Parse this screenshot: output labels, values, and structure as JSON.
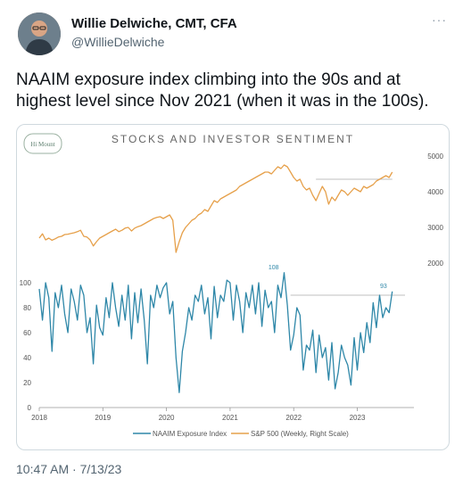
{
  "tweet": {
    "author_name": "Willie Delwiche, CMT, CFA",
    "author_handle": "@WillieDelwiche",
    "more_icon": "more-icon",
    "text": "NAAIM exposure index climbing into the 90s and at highest level since Nov 2021 (when it was in the 100s).",
    "timestamp": "10:47 AM · 7/13/23"
  },
  "logo_text": "Hi Mount",
  "chart_data": {
    "type": "line",
    "title": "STOCKS AND INVESTOR SENTIMENT",
    "x_ticks": [
      "2018",
      "2019",
      "2020",
      "2021",
      "2022",
      "2023"
    ],
    "left_axis_ticks": [
      "0",
      "20",
      "40",
      "60",
      "80",
      "100"
    ],
    "right_axis_ticks": [
      "2000",
      "3000",
      "4000",
      "5000"
    ],
    "left_ylim": [
      0,
      100
    ],
    "right_ylim": [
      2000,
      5000
    ],
    "colors": {
      "naaim": "#2e87a8",
      "sp500": "#e6a04a",
      "refline": "#bfbfbf"
    },
    "annotations": [
      {
        "label": "108",
        "series": "NAAIM Exposure Index",
        "x": 2021.85,
        "value": 108
      },
      {
        "label": "93",
        "series": "NAAIM Exposure Index",
        "x": 2023.55,
        "value": 93
      }
    ],
    "series": [
      {
        "name": "NAAIM Exposure Index",
        "axis": "left",
        "x": [
          2018.0,
          2018.05,
          2018.1,
          2018.15,
          2018.2,
          2018.25,
          2018.3,
          2018.35,
          2018.4,
          2018.45,
          2018.5,
          2018.55,
          2018.6,
          2018.65,
          2018.7,
          2018.75,
          2018.8,
          2018.85,
          2018.9,
          2018.95,
          2019.0,
          2019.05,
          2019.1,
          2019.15,
          2019.2,
          2019.25,
          2019.3,
          2019.35,
          2019.4,
          2019.45,
          2019.5,
          2019.55,
          2019.6,
          2019.65,
          2019.7,
          2019.75,
          2019.8,
          2019.85,
          2019.9,
          2019.95,
          2020.0,
          2020.05,
          2020.1,
          2020.15,
          2020.2,
          2020.25,
          2020.3,
          2020.35,
          2020.4,
          2020.45,
          2020.5,
          2020.55,
          2020.6,
          2020.65,
          2020.7,
          2020.75,
          2020.8,
          2020.85,
          2020.9,
          2020.95,
          2021.0,
          2021.05,
          2021.1,
          2021.15,
          2021.2,
          2021.25,
          2021.3,
          2021.35,
          2021.4,
          2021.45,
          2021.5,
          2021.55,
          2021.6,
          2021.65,
          2021.7,
          2021.75,
          2021.8,
          2021.85,
          2021.9,
          2021.95,
          2022.0,
          2022.05,
          2022.1,
          2022.15,
          2022.2,
          2022.25,
          2022.3,
          2022.35,
          2022.4,
          2022.45,
          2022.5,
          2022.55,
          2022.6,
          2022.65,
          2022.7,
          2022.75,
          2022.8,
          2022.85,
          2022.9,
          2022.95,
          2023.0,
          2023.05,
          2023.1,
          2023.15,
          2023.2,
          2023.25,
          2023.3,
          2023.35,
          2023.4,
          2023.45,
          2023.5,
          2023.55
        ],
        "values": [
          95,
          70,
          100,
          88,
          45,
          92,
          80,
          98,
          75,
          60,
          95,
          85,
          70,
          98,
          90,
          60,
          72,
          35,
          82,
          64,
          58,
          88,
          72,
          100,
          80,
          65,
          90,
          70,
          98,
          55,
          92,
          68,
          95,
          70,
          35,
          90,
          80,
          98,
          88,
          96,
          100,
          75,
          85,
          40,
          12,
          45,
          60,
          80,
          70,
          90,
          85,
          98,
          75,
          88,
          55,
          97,
          72,
          90,
          85,
          102,
          100,
          70,
          98,
          85,
          60,
          92,
          80,
          98,
          75,
          100,
          65,
          94,
          80,
          85,
          60,
          98,
          88,
          108,
          82,
          46,
          58,
          80,
          74,
          30,
          50,
          46,
          62,
          28,
          58,
          40,
          48,
          22,
          52,
          15,
          28,
          50,
          40,
          34,
          18,
          56,
          30,
          60,
          44,
          68,
          52,
          84,
          64,
          90,
          72,
          80,
          76,
          93
        ]
      },
      {
        "name": "S&P 500 (Weekly, Right Scale)",
        "axis": "right",
        "x": [
          2018.0,
          2018.05,
          2018.1,
          2018.15,
          2018.2,
          2018.25,
          2018.3,
          2018.35,
          2018.4,
          2018.45,
          2018.5,
          2018.55,
          2018.6,
          2018.65,
          2018.7,
          2018.75,
          2018.8,
          2018.85,
          2018.9,
          2018.95,
          2019.0,
          2019.05,
          2019.1,
          2019.15,
          2019.2,
          2019.25,
          2019.3,
          2019.35,
          2019.4,
          2019.45,
          2019.5,
          2019.55,
          2019.6,
          2019.65,
          2019.7,
          2019.75,
          2019.8,
          2019.85,
          2019.9,
          2019.95,
          2020.0,
          2020.05,
          2020.1,
          2020.15,
          2020.2,
          2020.25,
          2020.3,
          2020.35,
          2020.4,
          2020.45,
          2020.5,
          2020.55,
          2020.6,
          2020.65,
          2020.7,
          2020.75,
          2020.8,
          2020.85,
          2020.9,
          2020.95,
          2021.0,
          2021.05,
          2021.1,
          2021.15,
          2021.2,
          2021.25,
          2021.3,
          2021.35,
          2021.4,
          2021.45,
          2021.5,
          2021.55,
          2021.6,
          2021.65,
          2021.7,
          2021.75,
          2021.8,
          2021.85,
          2021.9,
          2021.95,
          2022.0,
          2022.05,
          2022.1,
          2022.15,
          2022.2,
          2022.25,
          2022.3,
          2022.35,
          2022.4,
          2022.45,
          2022.5,
          2022.55,
          2022.6,
          2022.65,
          2022.7,
          2022.75,
          2022.8,
          2022.85,
          2022.9,
          2022.95,
          2023.0,
          2023.05,
          2023.1,
          2023.15,
          2023.2,
          2023.25,
          2023.3,
          2023.35,
          2023.4,
          2023.45,
          2023.5,
          2023.55
        ],
        "values": [
          2700,
          2820,
          2650,
          2700,
          2640,
          2680,
          2730,
          2750,
          2800,
          2810,
          2830,
          2850,
          2880,
          2920,
          2750,
          2730,
          2650,
          2480,
          2600,
          2700,
          2750,
          2800,
          2850,
          2900,
          2950,
          2880,
          2920,
          2980,
          3000,
          2900,
          2980,
          3020,
          3050,
          3100,
          3150,
          3200,
          3250,
          3280,
          3300,
          3250,
          3300,
          3350,
          3200,
          2300,
          2600,
          2850,
          3000,
          3100,
          3200,
          3250,
          3350,
          3400,
          3500,
          3450,
          3600,
          3750,
          3700,
          3800,
          3850,
          3900,
          3950,
          4000,
          4050,
          4150,
          4200,
          4250,
          4300,
          4350,
          4400,
          4450,
          4500,
          4550,
          4550,
          4500,
          4600,
          4700,
          4650,
          4750,
          4700,
          4550,
          4400,
          4300,
          4350,
          4150,
          4050,
          4100,
          3900,
          3750,
          3950,
          4150,
          4000,
          3650,
          3850,
          3750,
          3900,
          4050,
          4000,
          3900,
          4000,
          4100,
          4050,
          4000,
          4150,
          4100,
          4150,
          4200,
          4300,
          4350,
          4400,
          4450,
          4400,
          4550
        ]
      }
    ],
    "xlim": [
      2018,
      2023.75
    ]
  }
}
